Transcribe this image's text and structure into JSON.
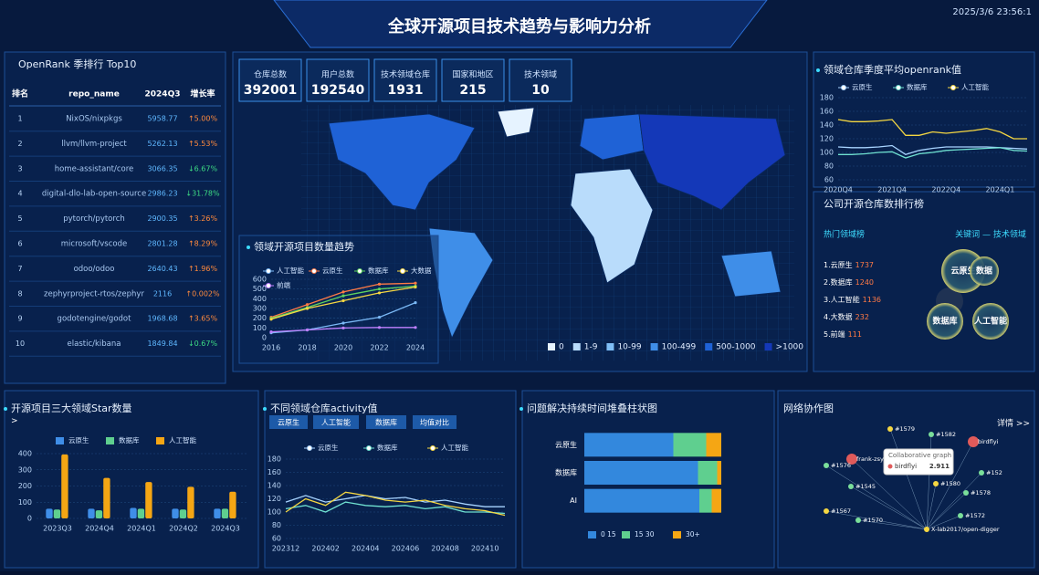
{
  "header": {
    "title": "全球开源项目技术趋势与影响力分析",
    "datetime": "2025/3/6 23:56:1"
  },
  "kpis": [
    {
      "label": "仓库总数",
      "value": 392001
    },
    {
      "label": "用户总数",
      "value": 192540
    },
    {
      "label": "技术领域仓库",
      "value": 1931
    },
    {
      "label": "国家和地区",
      "value": 215
    },
    {
      "label": "技术领域",
      "value": 10
    }
  ],
  "openrank_table": {
    "title": "OpenRank 季排行 Top10",
    "columns": [
      "排名",
      "repo_name",
      "2024Q3",
      "增长率"
    ],
    "rows": [
      [
        1,
        "NixOS/nixpkgs",
        5958.77,
        "↑5.00%"
      ],
      [
        2,
        "llvm/llvm-project",
        5262.13,
        "↑5.53%"
      ],
      [
        3,
        "home-assistant/core",
        3066.35,
        "↓6.67%"
      ],
      [
        4,
        "digital-dlo-lab-open-source",
        2986.23,
        "↓31.78%"
      ],
      [
        5,
        "pytorch/pytorch",
        2900.35,
        "↑3.26%"
      ],
      [
        6,
        "microsoft/vscode",
        2801.28,
        "↑8.29%"
      ],
      [
        7,
        "odoo/odoo",
        2640.43,
        "↑1.96%"
      ],
      [
        8,
        "zephyrproject-rtos/zephyr",
        2116,
        "↑0.002%"
      ],
      [
        9,
        "godotengine/godot",
        1968.68,
        "↑3.65%"
      ],
      [
        10,
        "elastic/kibana",
        1849.84,
        "↓0.67%"
      ]
    ]
  },
  "map": {
    "legend": [
      {
        "label": "0",
        "color": "#e6f3ff"
      },
      {
        "label": "1-9",
        "color": "#b9dcfb"
      },
      {
        "label": "10-99",
        "color": "#7fbef5"
      },
      {
        "label": "100-499",
        "color": "#3f8ee8"
      },
      {
        "label": "500-1000",
        "color": "#1f62d6"
      },
      {
        "label": ">1000",
        "color": "#1438b8"
      }
    ]
  },
  "company_rank": {
    "title": "公司开源仓库数排行榜",
    "list_title": "热门领域榜",
    "items": [
      {
        "name": "1.云原生",
        "value": 1737
      },
      {
        "name": "2.数据库",
        "value": 1240
      },
      {
        "name": "3.人工智能",
        "value": 1136
      },
      {
        "name": "4.大数据",
        "value": 232
      },
      {
        "name": "5.前端",
        "value": 111
      }
    ],
    "keyword_title": "关键词 — 技术领域",
    "bubbles": [
      "云原生",
      "数据",
      "数据库",
      "人工智能"
    ]
  },
  "network": {
    "title": "网络协作图",
    "more": "详情 >>",
    "nodes": [
      "#1579",
      "#1582",
      "birdflyi",
      "frank-zsy",
      "#1576",
      "#1545",
      "#1580",
      "#1578",
      "#152",
      "#1567",
      "#1570",
      "#1572",
      "X-lab2017/open-digger"
    ],
    "tooltip": {
      "title": "Collaborative graph",
      "name": "birdflyi",
      "value": "2.911"
    }
  },
  "chart_data": [
    {
      "type": "line",
      "title": "领域开源项目数量趋势",
      "categories": [
        "2016",
        "2018",
        "2020",
        "2022",
        "2024"
      ],
      "ylim": [
        0,
        600
      ],
      "yticks": [
        0,
        100,
        200,
        300,
        400,
        500,
        600
      ],
      "series": [
        {
          "name": "人工智能",
          "color": "#7ab8f5",
          "values": [
            50,
            80,
            150,
            210,
            360
          ]
        },
        {
          "name": "云原生",
          "color": "#ff7a45",
          "values": [
            210,
            340,
            470,
            550,
            560
          ]
        },
        {
          "name": "数据库",
          "color": "#5fd35f",
          "values": [
            200,
            310,
            430,
            500,
            530
          ]
        },
        {
          "name": "大数据",
          "color": "#f5d742",
          "values": [
            190,
            300,
            380,
            460,
            520
          ]
        },
        {
          "name": "前端",
          "color": "#c080ff",
          "values": [
            60,
            80,
            100,
            105,
            105
          ]
        }
      ]
    },
    {
      "type": "line",
      "title": "领域仓库季度平均openrank值",
      "categories": [
        "2020Q4",
        null,
        null,
        null,
        "2021Q4",
        null,
        null,
        null,
        "2022Q4",
        null,
        null,
        null,
        "2024Q1",
        null,
        null
      ],
      "ylim": [
        60,
        180
      ],
      "yticks": [
        60,
        80,
        100,
        120,
        140,
        160,
        180
      ],
      "series": [
        {
          "name": "云原生",
          "color": "#a8d4ff",
          "values": [
            108,
            107,
            107,
            108,
            110,
            97,
            103,
            106,
            108,
            108,
            108,
            108,
            107,
            106,
            105
          ]
        },
        {
          "name": "数据库",
          "color": "#6fe0d0",
          "values": [
            97,
            97,
            98,
            100,
            101,
            92,
            98,
            100,
            103,
            104,
            105,
            106,
            107,
            103,
            102
          ]
        },
        {
          "name": "人工智能",
          "color": "#f5d742",
          "values": [
            148,
            145,
            145,
            146,
            148,
            125,
            125,
            130,
            128,
            130,
            132,
            135,
            130,
            120,
            120
          ]
        }
      ]
    },
    {
      "type": "bar",
      "title": "开源项目三大领域Star数量",
      "more": ">",
      "categories": [
        "2023Q3",
        "2024Q4",
        "2024Q1",
        "2024Q2",
        "2024Q3"
      ],
      "ylim": [
        0,
        400
      ],
      "yticks": [
        0,
        100,
        200,
        300,
        400
      ],
      "series": [
        {
          "name": "云原生",
          "color": "#3f8ee8",
          "values": [
            60,
            60,
            65,
            60,
            60
          ]
        },
        {
          "name": "数据库",
          "color": "#5fcf8f",
          "values": [
            55,
            50,
            60,
            55,
            60
          ]
        },
        {
          "name": "人工智能",
          "color": "#f5a614",
          "values": [
            395,
            250,
            225,
            195,
            165
          ]
        }
      ]
    },
    {
      "type": "line",
      "title": "不同领域仓库activity值",
      "buttons": [
        "云原生",
        "人工智能",
        "数据库",
        "均值对比"
      ],
      "categories": [
        "202312",
        null,
        "202402",
        null,
        "202404",
        null,
        "202406",
        null,
        "202408",
        null,
        "202410",
        null
      ],
      "ylim": [
        60,
        180
      ],
      "yticks": [
        60,
        80,
        100,
        120,
        140,
        160,
        180
      ],
      "series": [
        {
          "name": "云原生",
          "color": "#a8d4ff",
          "values": [
            115,
            125,
            115,
            120,
            125,
            120,
            122,
            115,
            118,
            112,
            108,
            108
          ]
        },
        {
          "name": "数据库",
          "color": "#6fe0d0",
          "values": [
            105,
            110,
            100,
            115,
            110,
            108,
            110,
            105,
            108,
            100,
            100,
            98
          ]
        },
        {
          "name": "人工智能",
          "color": "#f5d742",
          "values": [
            100,
            120,
            110,
            130,
            125,
            118,
            115,
            118,
            110,
            105,
            102,
            95
          ]
        }
      ]
    },
    {
      "type": "hstack",
      "title": "问题解决持续时间堆叠柱状图",
      "categories": [
        "云原生",
        "数据库",
        "AI"
      ],
      "xlim": [
        0,
        100
      ],
      "series": [
        {
          "name": "0 15",
          "color": "#3388dd",
          "values": [
            65,
            83,
            84
          ]
        },
        {
          "name": "15 30",
          "color": "#5fcf8f",
          "values": [
            24,
            14,
            9
          ]
        },
        {
          "name": "30+",
          "color": "#f5a614",
          "values": [
            11,
            3,
            7
          ]
        }
      ]
    }
  ]
}
